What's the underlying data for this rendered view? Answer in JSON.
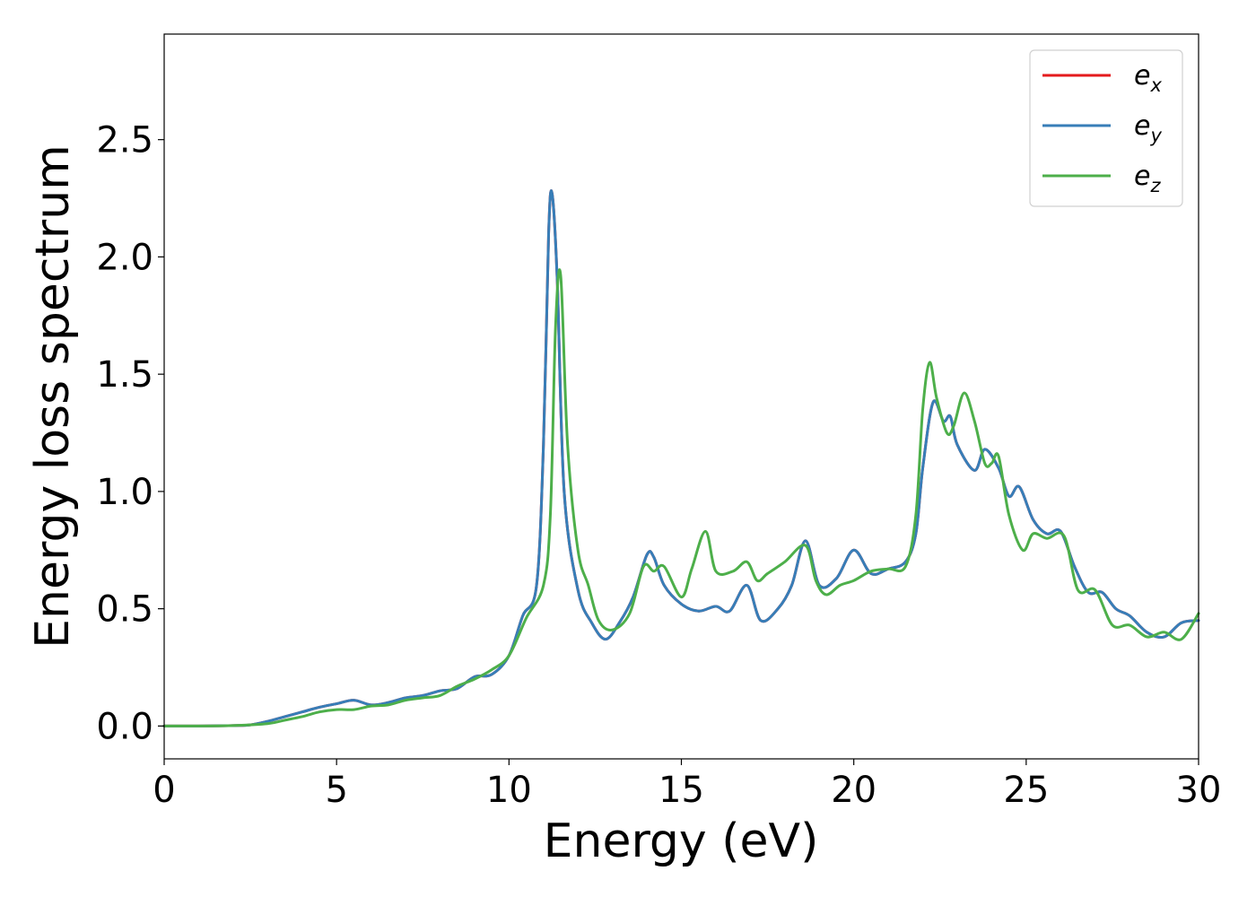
{
  "chart_data": {
    "type": "line",
    "xlabel": "Energy (eV)",
    "ylabel": "Energy loss spectrum",
    "xlim": [
      0,
      30
    ],
    "ylim": [
      -0.14,
      2.95
    ],
    "x_ticks": [
      "0",
      "5",
      "10",
      "15",
      "20",
      "25",
      "30"
    ],
    "y_ticks": [
      "0.0",
      "0.5",
      "1.0",
      "1.5",
      "2.0",
      "2.5"
    ],
    "grid": false,
    "legend_position": "top-right",
    "series": [
      {
        "name": "e_x",
        "legend_main": "e",
        "legend_sub": "x",
        "color": "#e41a1c",
        "x": [
          0,
          1,
          2,
          2.5,
          3,
          3.5,
          4,
          4.5,
          5,
          5.5,
          6,
          6.5,
          7,
          7.5,
          8,
          8.5,
          9,
          9.5,
          10,
          10.4,
          10.8,
          11,
          11.15,
          11.25,
          11.4,
          11.6,
          12,
          12.4,
          12.8,
          13.2,
          13.6,
          14,
          14.2,
          14.5,
          15,
          15.5,
          16,
          16.4,
          16.9,
          17.3,
          17.8,
          18.2,
          18.6,
          19,
          19.5,
          20,
          20.5,
          21,
          21.5,
          21.8,
          22,
          22.3,
          22.6,
          22.8,
          23,
          23.5,
          23.8,
          24.2,
          24.5,
          24.8,
          25.2,
          25.6,
          26,
          26.4,
          26.8,
          27.2,
          27.6,
          28,
          28.5,
          29,
          29.5,
          30
        ],
        "values": [
          0,
          0,
          0.002,
          0.005,
          0.02,
          0.04,
          0.06,
          0.08,
          0.095,
          0.11,
          0.09,
          0.1,
          0.12,
          0.13,
          0.15,
          0.16,
          0.21,
          0.22,
          0.3,
          0.47,
          0.6,
          1.2,
          2.1,
          2.27,
          1.9,
          1.0,
          0.58,
          0.44,
          0.37,
          0.44,
          0.55,
          0.73,
          0.72,
          0.6,
          0.52,
          0.49,
          0.51,
          0.49,
          0.6,
          0.45,
          0.5,
          0.6,
          0.79,
          0.6,
          0.63,
          0.75,
          0.65,
          0.67,
          0.7,
          0.82,
          1.1,
          1.38,
          1.3,
          1.32,
          1.2,
          1.09,
          1.18,
          1.1,
          0.98,
          1.02,
          0.88,
          0.82,
          0.83,
          0.68,
          0.57,
          0.57,
          0.5,
          0.47,
          0.4,
          0.38,
          0.44,
          0.45
        ]
      },
      {
        "name": "e_y",
        "legend_main": "e",
        "legend_sub": "y",
        "color": "#377eb8",
        "x": [
          0,
          1,
          2,
          2.5,
          3,
          3.5,
          4,
          4.5,
          5,
          5.5,
          6,
          6.5,
          7,
          7.5,
          8,
          8.5,
          9,
          9.5,
          10,
          10.4,
          10.8,
          11,
          11.15,
          11.25,
          11.4,
          11.6,
          12,
          12.4,
          12.8,
          13.2,
          13.6,
          14,
          14.2,
          14.5,
          15,
          15.5,
          16,
          16.4,
          16.9,
          17.3,
          17.8,
          18.2,
          18.6,
          19,
          19.5,
          20,
          20.5,
          21,
          21.5,
          21.8,
          22,
          22.3,
          22.6,
          22.8,
          23,
          23.5,
          23.8,
          24.2,
          24.5,
          24.8,
          25.2,
          25.6,
          26,
          26.4,
          26.8,
          27.2,
          27.6,
          28,
          28.5,
          29,
          29.5,
          30
        ],
        "values": [
          0,
          0,
          0.002,
          0.005,
          0.02,
          0.04,
          0.06,
          0.08,
          0.095,
          0.11,
          0.09,
          0.1,
          0.12,
          0.13,
          0.15,
          0.16,
          0.21,
          0.22,
          0.3,
          0.47,
          0.6,
          1.2,
          2.1,
          2.27,
          1.9,
          1.0,
          0.58,
          0.44,
          0.37,
          0.44,
          0.55,
          0.73,
          0.72,
          0.6,
          0.52,
          0.49,
          0.51,
          0.49,
          0.6,
          0.45,
          0.5,
          0.6,
          0.79,
          0.6,
          0.63,
          0.75,
          0.65,
          0.67,
          0.7,
          0.82,
          1.1,
          1.38,
          1.3,
          1.32,
          1.2,
          1.09,
          1.18,
          1.1,
          0.98,
          1.02,
          0.88,
          0.82,
          0.83,
          0.68,
          0.57,
          0.57,
          0.5,
          0.47,
          0.4,
          0.38,
          0.44,
          0.45
        ]
      },
      {
        "name": "e_z",
        "legend_main": "e",
        "legend_sub": "z",
        "color": "#4daf4a",
        "x": [
          0,
          1,
          2,
          3,
          3.5,
          4,
          4.5,
          5,
          5.5,
          6,
          6.5,
          7,
          7.5,
          8,
          8.5,
          9,
          9.5,
          10,
          10.5,
          11,
          11.2,
          11.35,
          11.5,
          11.7,
          12,
          12.3,
          12.6,
          13,
          13.5,
          13.9,
          14.2,
          14.5,
          15,
          15.3,
          15.7,
          16,
          16.5,
          16.9,
          17.2,
          17.5,
          18,
          18.6,
          18.9,
          19.2,
          19.6,
          20,
          20.5,
          21,
          21.5,
          21.8,
          22,
          22.2,
          22.4,
          22.7,
          22.9,
          23.2,
          23.5,
          23.8,
          24,
          24.2,
          24.5,
          24.9,
          25.2,
          25.6,
          26.1,
          26.5,
          27,
          27.5,
          28,
          28.5,
          29,
          29.5,
          30
        ],
        "values": [
          0,
          0,
          0.002,
          0.01,
          0.025,
          0.04,
          0.06,
          0.07,
          0.07,
          0.085,
          0.09,
          0.11,
          0.12,
          0.13,
          0.17,
          0.2,
          0.24,
          0.3,
          0.46,
          0.6,
          0.9,
          1.7,
          1.92,
          1.2,
          0.75,
          0.6,
          0.45,
          0.41,
          0.48,
          0.68,
          0.66,
          0.68,
          0.55,
          0.67,
          0.83,
          0.66,
          0.66,
          0.7,
          0.62,
          0.65,
          0.7,
          0.77,
          0.62,
          0.56,
          0.6,
          0.62,
          0.66,
          0.67,
          0.68,
          0.9,
          1.35,
          1.55,
          1.4,
          1.25,
          1.28,
          1.42,
          1.3,
          1.12,
          1.12,
          1.15,
          0.9,
          0.75,
          0.82,
          0.8,
          0.81,
          0.58,
          0.58,
          0.43,
          0.43,
          0.38,
          0.4,
          0.37,
          0.48
        ]
      }
    ]
  }
}
